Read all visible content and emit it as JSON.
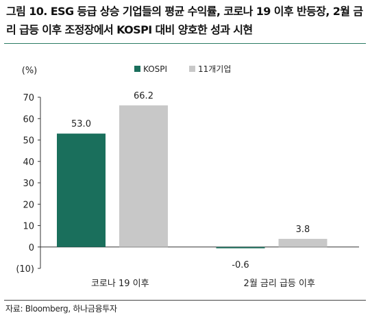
{
  "figure": {
    "title": "그림 10. ESG 등급 상승 기업들의 평균 수익률, 코로나 19 이후 반등장, 2월 금리 급등 이후 조정장에서 KOSPI 대비 양호한 성과 시현",
    "source": "자료: Bloomberg, 하나금융투자"
  },
  "colors": {
    "kospi": "#1a6f5c",
    "companies": "#c8c8c8",
    "title_rule": "#2a7a63",
    "axis": "#333333"
  },
  "chart_data": {
    "type": "bar",
    "title": "",
    "ylabel": "(%)",
    "xlabel": "",
    "categories": [
      "코로나 19 이후",
      "2월 금리 급등 이후"
    ],
    "series": [
      {
        "name": "KOSPI",
        "values": [
          53.0,
          -0.6
        ],
        "labels": [
          "53.0",
          "-0.6"
        ]
      },
      {
        "name": "11개기업",
        "values": [
          66.2,
          3.8
        ],
        "labels": [
          "66.2",
          "3.8"
        ]
      }
    ],
    "ylim": [
      -10,
      70
    ],
    "yticks": [
      -10,
      0,
      10,
      20,
      30,
      40,
      50,
      60,
      70
    ],
    "ytick_labels": [
      "(10)",
      "0",
      "10",
      "20",
      "30",
      "40",
      "50",
      "60",
      "70"
    ],
    "grid": false,
    "legend_position": "top-center"
  }
}
